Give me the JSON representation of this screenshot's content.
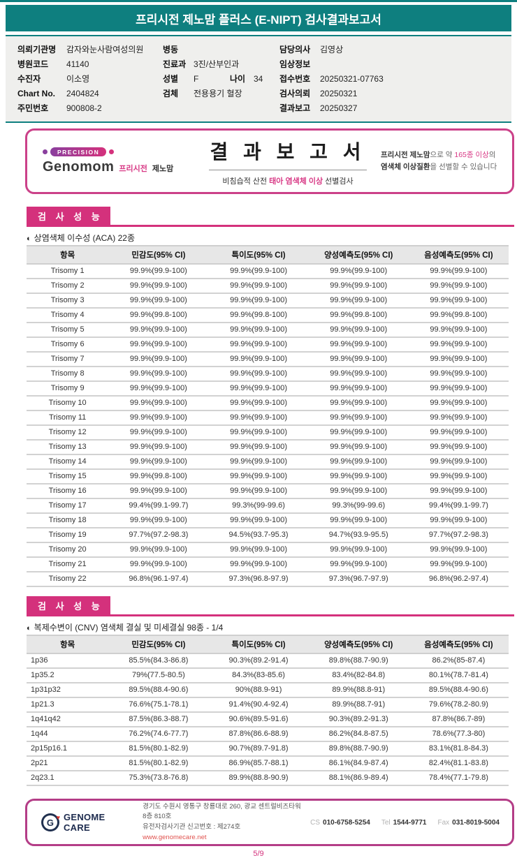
{
  "colors": {
    "teal": "#0e7f7f",
    "magenta": "#d4317c"
  },
  "header": {
    "title": "프리시전 제노맘 플러스 (E-NIPT) 검사결과보고서"
  },
  "patient_info": {
    "col1": [
      {
        "label": "의뢰기관명",
        "value": "감자와눈사람여성의원"
      },
      {
        "label": "병원코드",
        "value": "41140"
      },
      {
        "label": "수진자",
        "value": "이소영"
      },
      {
        "label": "Chart No.",
        "value": "2404824"
      },
      {
        "label": "주민번호",
        "value": "900808-2"
      }
    ],
    "col2": [
      {
        "label": "병동",
        "value": ""
      },
      {
        "label": "진료과",
        "value": "3진/산부인과"
      },
      {
        "label": "성별",
        "value": "F",
        "label2": "나이",
        "value2": "34"
      },
      {
        "label": "검체",
        "value": "전용용기 혈장"
      }
    ],
    "col3": [
      {
        "label": "담당의사",
        "value": "김영상"
      },
      {
        "label": "임상정보",
        "value": ""
      },
      {
        "label": "접수번호",
        "value": "20250321-07763"
      },
      {
        "label": "검사의뢰",
        "value": "20250321"
      },
      {
        "label": "결과보고",
        "value": "20250327"
      }
    ]
  },
  "banner": {
    "badge": "PRECISION",
    "brand": "Genomom",
    "brand_sub_pink": "프리시전",
    "brand_sub_dark": "제노맘",
    "title": "결 과 보 고 서",
    "subtitle_pre": "비침습적 산전 ",
    "subtitle_pink": "태아 염색체 이상",
    "subtitle_post": " 선별검사",
    "note_bold1": "프리시전 제노맘",
    "note_mid1": "으로 약 ",
    "note_pink": "165종 이상",
    "note_mid2": "의",
    "note_bold2": "염색체 이상질환",
    "note_post": "을 선별할 수 있습니다"
  },
  "sections": [
    {
      "title": "검 사 성 능"
    },
    {
      "title": "검 사 성 능"
    }
  ],
  "tables": [
    {
      "bullet": "◐",
      "caption": "상염색체 이수성 (ACA) 22종",
      "headers": [
        "항목",
        "민감도(95% CI)",
        "특이도(95% CI)",
        "양성예측도(95% CI)",
        "음성예측도(95% CI)"
      ],
      "rows": [
        [
          "Trisomy 1",
          "99.9%(99.9-100)",
          "99.9%(99.9-100)",
          "99.9%(99.9-100)",
          "99.9%(99.9-100)"
        ],
        [
          "Trisomy 2",
          "99.9%(99.9-100)",
          "99.9%(99.9-100)",
          "99.9%(99.9-100)",
          "99.9%(99.9-100)"
        ],
        [
          "Trisomy 3",
          "99.9%(99.9-100)",
          "99.9%(99.9-100)",
          "99.9%(99.9-100)",
          "99.9%(99.9-100)"
        ],
        [
          "Trisomy 4",
          "99.9%(99.8-100)",
          "99.9%(99.8-100)",
          "99.9%(99.8-100)",
          "99.9%(99.8-100)"
        ],
        [
          "Trisomy 5",
          "99.9%(99.9-100)",
          "99.9%(99.9-100)",
          "99.9%(99.9-100)",
          "99.9%(99.9-100)"
        ],
        [
          "Trisomy 6",
          "99.9%(99.9-100)",
          "99.9%(99.9-100)",
          "99.9%(99.9-100)",
          "99.9%(99.9-100)"
        ],
        [
          "Trisomy 7",
          "99.9%(99.9-100)",
          "99.9%(99.9-100)",
          "99.9%(99.9-100)",
          "99.9%(99.9-100)"
        ],
        [
          "Trisomy 8",
          "99.9%(99.9-100)",
          "99.9%(99.9-100)",
          "99.9%(99.9-100)",
          "99.9%(99.9-100)"
        ],
        [
          "Trisomy 9",
          "99.9%(99.9-100)",
          "99.9%(99.9-100)",
          "99.9%(99.9-100)",
          "99.9%(99.9-100)"
        ],
        [
          "Trisomy 10",
          "99.9%(99.9-100)",
          "99.9%(99.9-100)",
          "99.9%(99.9-100)",
          "99.9%(99.9-100)"
        ],
        [
          "Trisomy 11",
          "99.9%(99.9-100)",
          "99.9%(99.9-100)",
          "99.9%(99.9-100)",
          "99.9%(99.9-100)"
        ],
        [
          "Trisomy 12",
          "99.9%(99.9-100)",
          "99.9%(99.9-100)",
          "99.9%(99.9-100)",
          "99.9%(99.9-100)"
        ],
        [
          "Trisomy 13",
          "99.9%(99.9-100)",
          "99.9%(99.9-100)",
          "99.9%(99.9-100)",
          "99.9%(99.9-100)"
        ],
        [
          "Trisomy 14",
          "99.9%(99.9-100)",
          "99.9%(99.9-100)",
          "99.9%(99.9-100)",
          "99.9%(99.9-100)"
        ],
        [
          "Trisomy 15",
          "99.9%(99.8-100)",
          "99.9%(99.9-100)",
          "99.9%(99.9-100)",
          "99.9%(99.9-100)"
        ],
        [
          "Trisomy 16",
          "99.9%(99.9-100)",
          "99.9%(99.9-100)",
          "99.9%(99.9-100)",
          "99.9%(99.9-100)"
        ],
        [
          "Trisomy 17",
          "99.4%(99.1-99.7)",
          "99.3%(99-99.6)",
          "99.3%(99-99.6)",
          "99.4%(99.1-99.7)"
        ],
        [
          "Trisomy 18",
          "99.9%(99.9-100)",
          "99.9%(99.9-100)",
          "99.9%(99.9-100)",
          "99.9%(99.9-100)"
        ],
        [
          "Trisomy 19",
          "97.7%(97.2-98.3)",
          "94.5%(93.7-95.3)",
          "94.7%(93.9-95.5)",
          "97.7%(97.2-98.3)"
        ],
        [
          "Trisomy 20",
          "99.9%(99.9-100)",
          "99.9%(99.9-100)",
          "99.9%(99.9-100)",
          "99.9%(99.9-100)"
        ],
        [
          "Trisomy 21",
          "99.9%(99.9-100)",
          "99.9%(99.9-100)",
          "99.9%(99.9-100)",
          "99.9%(99.9-100)"
        ],
        [
          "Trisomy 22",
          "96.8%(96.1-97.4)",
          "97.3%(96.8-97.9)",
          "97.3%(96.7-97.9)",
          "96.8%(96.2-97.4)"
        ]
      ]
    },
    {
      "bullet": "◐",
      "caption": "복제수변이 (CNV) 염색체 결실 및 미세결실 98종 - 1/4",
      "headers": [
        "항목",
        "민감도(95% CI)",
        "특이도(95% CI)",
        "양성예측도(95% CI)",
        "음성예측도(95% CI)"
      ],
      "rows": [
        [
          "1p36",
          "85.5%(84.3-86.8)",
          "90.3%(89.2-91.4)",
          "89.8%(88.7-90.9)",
          "86.2%(85-87.4)"
        ],
        [
          "1p35.2",
          "79%(77.5-80.5)",
          "84.3%(83-85.6)",
          "83.4%(82-84.8)",
          "80.1%(78.7-81.4)"
        ],
        [
          "1p31p32",
          "89.5%(88.4-90.6)",
          "90%(88.9-91)",
          "89.9%(88.8-91)",
          "89.5%(88.4-90.6)"
        ],
        [
          "1p21.3",
          "76.6%(75.1-78.1)",
          "91.4%(90.4-92.4)",
          "89.9%(88.7-91)",
          "79.6%(78.2-80.9)"
        ],
        [
          "1q41q42",
          "87.5%(86.3-88.7)",
          "90.6%(89.5-91.6)",
          "90.3%(89.2-91.3)",
          "87.8%(86.7-89)"
        ],
        [
          "1q44",
          "76.2%(74.6-77.7)",
          "87.8%(86.6-88.9)",
          "86.2%(84.8-87.5)",
          "78.6%(77.3-80)"
        ],
        [
          "2p15p16.1",
          "81.5%(80.1-82.9)",
          "90.7%(89.7-91.8)",
          "89.8%(88.7-90.9)",
          "83.1%(81.8-84.3)"
        ],
        [
          "2p21",
          "81.5%(80.1-82.9)",
          "86.9%(85.7-88.1)",
          "86.1%(84.9-87.4)",
          "82.4%(81.1-83.8)"
        ],
        [
          "2q23.1",
          "75.3%(73.8-76.8)",
          "89.9%(88.8-90.9)",
          "88.1%(86.9-89.4)",
          "78.4%(77.1-79.8)"
        ]
      ]
    }
  ],
  "footer": {
    "logo_mark": "G",
    "logo_text": "GENOME CARE",
    "address1": "경기도 수원시 영통구 창룡대로 260, 광교 센트럴비즈타워 8층 810호",
    "address2": "유전자검사기관 신고번호 : 제274호",
    "website": "www.genomecare.net",
    "contacts": [
      {
        "label": "CS",
        "value": "010-6758-5254"
      },
      {
        "label": "Tel",
        "value": "1544-9771"
      },
      {
        "label": "Fax",
        "value": "031-8019-5004"
      }
    ]
  },
  "page_number": "5/9"
}
